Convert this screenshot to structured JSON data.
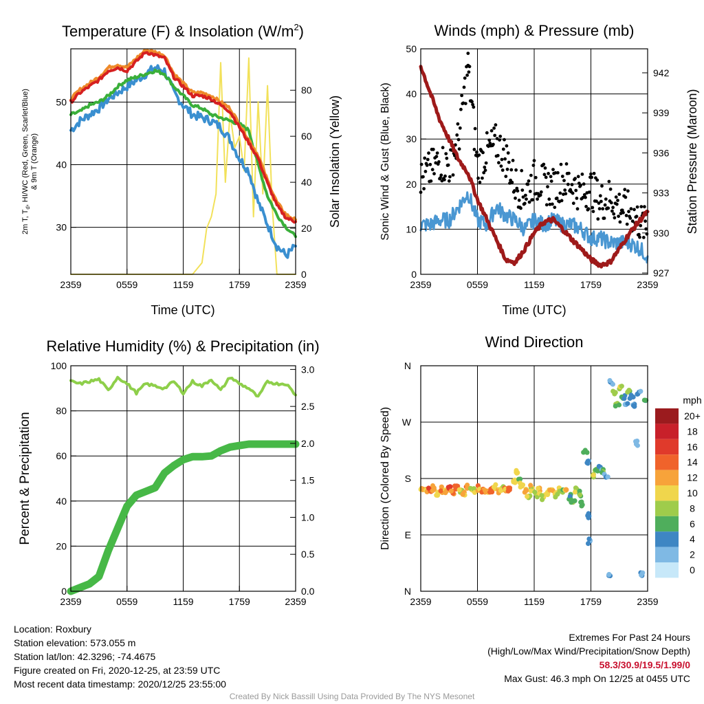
{
  "colors": {
    "temp": "#d62020",
    "heat": "#ee8a2a",
    "dew": "#3a8fd0",
    "wc": "#3aaf3a",
    "insol": "#f2e15a",
    "wind": "#4a97d2",
    "gust": "#000000",
    "pressure": "#9e1a1a",
    "rh": "#8ecf4a",
    "precip": "#47b847"
  },
  "panels": {
    "temp": {
      "title": "Temperature (F) & Insolation (W/m²)",
      "ylabel": "2m T, Td, HI/WC (Red, Green, Scarlet/Blue) & 9m T (Orange)",
      "ylabel2": "Solar Insolation (Yellow)",
      "xlabel": "Time (UTC)"
    },
    "wind": {
      "title": "Winds (mph) & Pressure (mb)",
      "ylabel": "Sonic Wind & Gust (Blue, Black)",
      "ylabel2": "Station Pressure (Maroon)",
      "xlabel": "Time (UTC)"
    },
    "rh": {
      "title": "Relative Humidity (%) & Precipitation (in)",
      "ylabel": "Percent & Precipitation"
    },
    "dir": {
      "title": "Wind Direction",
      "ylabel": "Direction (Colored By Speed)",
      "legend_title": "mph"
    }
  },
  "chart_data": [
    {
      "type": "line",
      "title": "Temperature (F) & Insolation (W/m²)",
      "xlabel": "Time (UTC)",
      "ylabel": "2m T, Td, HI/WC (Red, Green, Scarlet/Blue) & 9m T (Orange)",
      "ylabel_right": "Solar Insolation (Yellow)",
      "x": [
        "2359",
        "0559",
        "1159",
        "1759",
        "2359"
      ],
      "ylim": [
        22.5,
        58.5
      ],
      "yticks": [
        30,
        40,
        50
      ],
      "ylim_right": [
        0,
        98
      ],
      "yticks_right": [
        0,
        20,
        40,
        60,
        80
      ],
      "series": [
        {
          "name": "2m T",
          "axis": "left",
          "x": [
            0,
            1,
            2,
            3,
            4,
            5,
            6,
            7,
            8,
            9,
            10,
            11,
            12,
            13,
            14,
            15,
            16,
            17,
            18,
            19,
            20,
            21,
            22,
            23,
            24
          ],
          "values": [
            50.0,
            51.5,
            52.5,
            53.5,
            55.0,
            55.5,
            55.0,
            56.5,
            58.0,
            57.5,
            57.0,
            54.0,
            52.5,
            51.0,
            51.0,
            50.5,
            49.5,
            48.5,
            46.0,
            43.5,
            41.0,
            37.0,
            33.5,
            31.5,
            30.9
          ]
        },
        {
          "name": "9m T",
          "axis": "left",
          "x": [
            0,
            1,
            2,
            3,
            4,
            5,
            6,
            7,
            8,
            9,
            10,
            11,
            12,
            13,
            14,
            15,
            16,
            17,
            18,
            19,
            20,
            21,
            22,
            23,
            24
          ],
          "values": [
            50.5,
            52.0,
            53.0,
            54.0,
            55.5,
            56.0,
            55.5,
            57.0,
            58.3,
            58.0,
            57.5,
            54.5,
            53.0,
            51.5,
            51.5,
            51.0,
            50.0,
            49.0,
            46.5,
            44.0,
            41.5,
            37.5,
            34.0,
            32.0,
            31.2
          ]
        },
        {
          "name": "Td",
          "axis": "left",
          "x": [
            0,
            1,
            2,
            3,
            4,
            5,
            6,
            7,
            8,
            9,
            10,
            11,
            12,
            13,
            14,
            15,
            16,
            17,
            18,
            19,
            20,
            21,
            22,
            23,
            24
          ],
          "values": [
            48.0,
            48.5,
            49.5,
            50.0,
            51.0,
            52.5,
            53.5,
            54.0,
            54.5,
            55.0,
            54.5,
            52.5,
            51.0,
            49.5,
            49.0,
            48.0,
            47.5,
            47.0,
            46.5,
            45.5,
            40.0,
            35.0,
            32.0,
            30.0,
            28.5
          ]
        },
        {
          "name": "HI/WC",
          "axis": "left",
          "x": [
            0,
            1,
            2,
            3,
            4,
            5,
            6,
            7,
            8,
            9,
            10,
            11,
            12,
            13,
            14,
            15,
            16,
            17,
            18,
            19,
            20,
            21,
            22,
            23,
            24
          ],
          "values": [
            45.5,
            47.0,
            48.0,
            49.0,
            50.5,
            51.5,
            52.5,
            53.5,
            54.5,
            55.5,
            55.0,
            51.5,
            49.5,
            48.0,
            47.5,
            47.0,
            46.0,
            44.0,
            41.0,
            39.0,
            34.0,
            30.5,
            27.0,
            25.5,
            27.0
          ]
        },
        {
          "name": "Insolation",
          "axis": "right",
          "x": [
            0,
            1,
            2,
            3,
            4,
            5,
            6,
            7,
            8,
            9,
            10,
            11,
            12,
            13,
            14,
            14.5,
            15,
            15.5,
            16,
            16.5,
            17,
            17.5,
            18,
            18.5,
            19,
            19.5,
            20,
            20.5,
            21,
            21.5,
            22,
            23,
            24
          ],
          "values": [
            0,
            0,
            0,
            0,
            0,
            0,
            0,
            0,
            0,
            0,
            0,
            0,
            0,
            0,
            5,
            20,
            25,
            35,
            92,
            40,
            70,
            55,
            60,
            45,
            94,
            25,
            75,
            35,
            82,
            30,
            0,
            0,
            0
          ]
        }
      ]
    },
    {
      "type": "line+scatter",
      "title": "Winds (mph) & Pressure (mb)",
      "xlabel": "Time (UTC)",
      "ylabel": "Sonic Wind & Gust (Blue, Black)",
      "ylabel_right": "Station Pressure (Maroon)",
      "x": [
        "2359",
        "0559",
        "1159",
        "1759",
        "2359"
      ],
      "ylim": [
        0,
        50
      ],
      "yticks": [
        0,
        10,
        20,
        30,
        40,
        50
      ],
      "ylim_right": [
        926.9,
        943.8
      ],
      "yticks_right": [
        927,
        930,
        933,
        936,
        939,
        942
      ],
      "series": [
        {
          "name": "Sonic Wind",
          "axis": "left",
          "x": [
            0,
            1,
            2,
            3,
            4,
            5,
            6,
            7,
            8,
            9,
            10,
            11,
            12,
            13,
            14,
            15,
            16,
            17,
            18,
            19,
            20,
            21,
            22,
            23,
            24
          ],
          "values": [
            11,
            11,
            12,
            12,
            15,
            18,
            12,
            11,
            15,
            13,
            12,
            10,
            12,
            11,
            12,
            11,
            11,
            10,
            8,
            8,
            7,
            7,
            7,
            6,
            4
          ]
        },
        {
          "name": "Gust",
          "axis": "left",
          "x": [
            0,
            1,
            2,
            3,
            4,
            5,
            6,
            7,
            8,
            9,
            10,
            11,
            12,
            13,
            14,
            15,
            16,
            17,
            18,
            19,
            20,
            21,
            22,
            23,
            24
          ],
          "values": [
            21,
            23,
            25,
            24,
            30,
            46.3,
            24,
            27,
            29,
            26,
            20,
            18,
            21,
            20,
            19,
            21,
            20,
            18,
            19,
            16,
            17,
            15,
            14,
            12,
            10
          ]
        },
        {
          "name": "Pressure",
          "axis": "right",
          "x": [
            0,
            1,
            2,
            3,
            4,
            5,
            6,
            7,
            8,
            9,
            10,
            11,
            12,
            13,
            14,
            15,
            16,
            17,
            18,
            19,
            20,
            21,
            22,
            23,
            24
          ],
          "values": [
            942.5,
            940.5,
            938.5,
            937.0,
            935.5,
            934.5,
            932.5,
            931.0,
            929.5,
            928.0,
            927.8,
            928.8,
            930.0,
            930.8,
            931.0,
            930.3,
            929.5,
            928.8,
            928.0,
            927.6,
            927.8,
            928.8,
            929.9,
            930.8,
            931.6
          ]
        }
      ]
    },
    {
      "type": "line",
      "title": "Relative Humidity (%) & Precipitation (in)",
      "ylabel": "Percent & Precipitation",
      "x": [
        "2359",
        "0559",
        "1159",
        "1759",
        "2359"
      ],
      "ylim": [
        0,
        100
      ],
      "yticks": [
        0,
        20,
        40,
        60,
        80,
        100
      ],
      "ylim_right": [
        0,
        3.05
      ],
      "yticks_right": [
        0.0,
        0.5,
        1.0,
        1.5,
        2.0,
        2.5,
        3.0
      ],
      "series": [
        {
          "name": "RH",
          "axis": "left",
          "x": [
            0,
            1,
            2,
            3,
            4,
            5,
            6,
            7,
            8,
            9,
            10,
            11,
            12,
            13,
            14,
            15,
            16,
            17,
            18,
            19,
            20,
            21,
            22,
            23,
            24
          ],
          "values": [
            93,
            92,
            93,
            94,
            89,
            95,
            92,
            88,
            92,
            91,
            90,
            93,
            88,
            93,
            91,
            94,
            89,
            95,
            92,
            90,
            86,
            93,
            92,
            92,
            87
          ]
        },
        {
          "name": "Precipitation",
          "axis": "right",
          "x": [
            0,
            1,
            2,
            3,
            4,
            5,
            6,
            7,
            8,
            9,
            10,
            11,
            12,
            13,
            14,
            15,
            16,
            17,
            18,
            19,
            20,
            21,
            22,
            23,
            24
          ],
          "values": [
            0.0,
            0.05,
            0.1,
            0.2,
            0.55,
            0.85,
            1.15,
            1.3,
            1.35,
            1.4,
            1.6,
            1.7,
            1.78,
            1.82,
            1.82,
            1.83,
            1.9,
            1.95,
            1.97,
            1.99,
            1.99,
            1.99,
            1.99,
            1.99,
            1.99
          ]
        }
      ]
    },
    {
      "type": "scatter",
      "title": "Wind Direction",
      "ylabel": "Direction (Colored By Speed)",
      "x": [
        "2359",
        "0559",
        "1159",
        "1759",
        "2359"
      ],
      "yticks": [
        "N",
        "E",
        "S",
        "W",
        "N"
      ],
      "legend_title": "mph",
      "legend": [
        "20+",
        "18",
        "16",
        "14",
        "12",
        "10",
        "8",
        "6",
        "4",
        "2",
        "0"
      ],
      "legend_colors": [
        "#9b1b1e",
        "#c8202a",
        "#e03a2b",
        "#f0632b",
        "#f7a33a",
        "#f0d64c",
        "#9fcc4b",
        "#4fae5c",
        "#3e86c3",
        "#7fb9e4",
        "#c7e8f9"
      ],
      "points": [
        {
          "x": 0.2,
          "dir": 162,
          "speed": 12
        },
        {
          "x": 0.6,
          "dir": 163,
          "speed": 11
        },
        {
          "x": 1.0,
          "dir": 160,
          "speed": 14
        },
        {
          "x": 1.4,
          "dir": 165,
          "speed": 12
        },
        {
          "x": 1.8,
          "dir": 158,
          "speed": 10
        },
        {
          "x": 2.2,
          "dir": 162,
          "speed": 13
        },
        {
          "x": 2.6,
          "dir": 161,
          "speed": 11
        },
        {
          "x": 3.0,
          "dir": 164,
          "speed": 15
        },
        {
          "x": 3.4,
          "dir": 160,
          "speed": 12
        },
        {
          "x": 3.8,
          "dir": 168,
          "speed": 14
        },
        {
          "x": 4.2,
          "dir": 162,
          "speed": 9
        },
        {
          "x": 4.6,
          "dir": 158,
          "speed": 11
        },
        {
          "x": 5.0,
          "dir": 165,
          "speed": 13
        },
        {
          "x": 5.4,
          "dir": 162,
          "speed": 10
        },
        {
          "x": 5.8,
          "dir": 160,
          "speed": 8
        },
        {
          "x": 6.2,
          "dir": 164,
          "speed": 12
        },
        {
          "x": 6.6,
          "dir": 163,
          "speed": 13
        },
        {
          "x": 7.0,
          "dir": 160,
          "speed": 11
        },
        {
          "x": 7.4,
          "dir": 163,
          "speed": 14
        },
        {
          "x": 7.8,
          "dir": 166,
          "speed": 10
        },
        {
          "x": 8.2,
          "dir": 162,
          "speed": 12
        },
        {
          "x": 8.6,
          "dir": 165,
          "speed": 9
        },
        {
          "x": 9.0,
          "dir": 160,
          "speed": 12
        },
        {
          "x": 9.4,
          "dir": 162,
          "speed": 13
        },
        {
          "x": 9.8,
          "dir": 176,
          "speed": 9
        },
        {
          "x": 10.1,
          "dir": 190,
          "speed": 10
        },
        {
          "x": 10.4,
          "dir": 178,
          "speed": 8
        },
        {
          "x": 10.7,
          "dir": 168,
          "speed": 11
        },
        {
          "x": 11.0,
          "dir": 158,
          "speed": 12
        },
        {
          "x": 11.4,
          "dir": 152,
          "speed": 9
        },
        {
          "x": 11.8,
          "dir": 165,
          "speed": 10
        },
        {
          "x": 12.2,
          "dir": 155,
          "speed": 8
        },
        {
          "x": 12.6,
          "dir": 160,
          "speed": 11
        },
        {
          "x": 13.0,
          "dir": 150,
          "speed": 9
        },
        {
          "x": 13.4,
          "dir": 158,
          "speed": 10
        },
        {
          "x": 13.8,
          "dir": 162,
          "speed": 12
        },
        {
          "x": 14.2,
          "dir": 155,
          "speed": 9
        },
        {
          "x": 14.6,
          "dir": 160,
          "speed": 10
        },
        {
          "x": 15.0,
          "dir": 158,
          "speed": 7
        },
        {
          "x": 15.4,
          "dir": 162,
          "speed": 11
        },
        {
          "x": 15.8,
          "dir": 150,
          "speed": 6
        },
        {
          "x": 16.1,
          "dir": 142,
          "speed": 7
        },
        {
          "x": 16.4,
          "dir": 160,
          "speed": 8
        },
        {
          "x": 16.8,
          "dir": 155,
          "speed": 6
        },
        {
          "x": 17.1,
          "dir": 138,
          "speed": 5
        },
        {
          "x": 17.4,
          "dir": 225,
          "speed": 6
        },
        {
          "x": 17.6,
          "dir": 205,
          "speed": 4
        },
        {
          "x": 17.8,
          "dir": 120,
          "speed": 3
        },
        {
          "x": 17.9,
          "dir": 80,
          "speed": 3
        },
        {
          "x": 18.2,
          "dir": 185,
          "speed": 8
        },
        {
          "x": 18.6,
          "dir": 195,
          "speed": 7
        },
        {
          "x": 19.0,
          "dir": 198,
          "speed": 4
        },
        {
          "x": 19.3,
          "dir": 190,
          "speed": 6
        },
        {
          "x": 19.6,
          "dir": 182,
          "speed": 3
        },
        {
          "x": 19.9,
          "dir": 25,
          "speed": 3
        },
        {
          "x": 20.2,
          "dir": 332,
          "speed": 2
        },
        {
          "x": 20.5,
          "dir": 315,
          "speed": 8
        },
        {
          "x": 20.8,
          "dir": 300,
          "speed": 7
        },
        {
          "x": 21.1,
          "dir": 325,
          "speed": 9
        },
        {
          "x": 21.4,
          "dir": 308,
          "speed": 5
        },
        {
          "x": 21.7,
          "dir": 298,
          "speed": 4
        },
        {
          "x": 22.0,
          "dir": 320,
          "speed": 6
        },
        {
          "x": 22.3,
          "dir": 310,
          "speed": 4
        },
        {
          "x": 22.6,
          "dir": 295,
          "speed": 3
        },
        {
          "x": 22.8,
          "dir": 235,
          "speed": 2
        },
        {
          "x": 23.1,
          "dir": 318,
          "speed": 4
        },
        {
          "x": 23.4,
          "dir": 25,
          "speed": 3
        },
        {
          "x": 23.7,
          "dir": 305,
          "speed": 5
        }
      ]
    }
  ],
  "info": {
    "location": "Location: Roxbury",
    "elevation": "Station elevation: 573.055 m",
    "latlon": "Station lat/lon: 42.3296; -74.4675",
    "created": "Figure created on Fri, 2020-12-25, at 23:59 UTC",
    "recent": "Most recent data timestamp: 2020/12/25 23:55:00",
    "extremes_title": "Extremes For Past 24 Hours",
    "extremes_subtitle": "(High/Low/Max Wind/Precipitation/Snow Depth)",
    "extremes_values": "58.3/30.9/19.5/1.99/0",
    "max_gust": "Max Gust: 46.3 mph On 12/25 at 0455 UTC"
  },
  "credit": "Created By Nick Bassill Using Data Provided By The NYS Mesonet"
}
